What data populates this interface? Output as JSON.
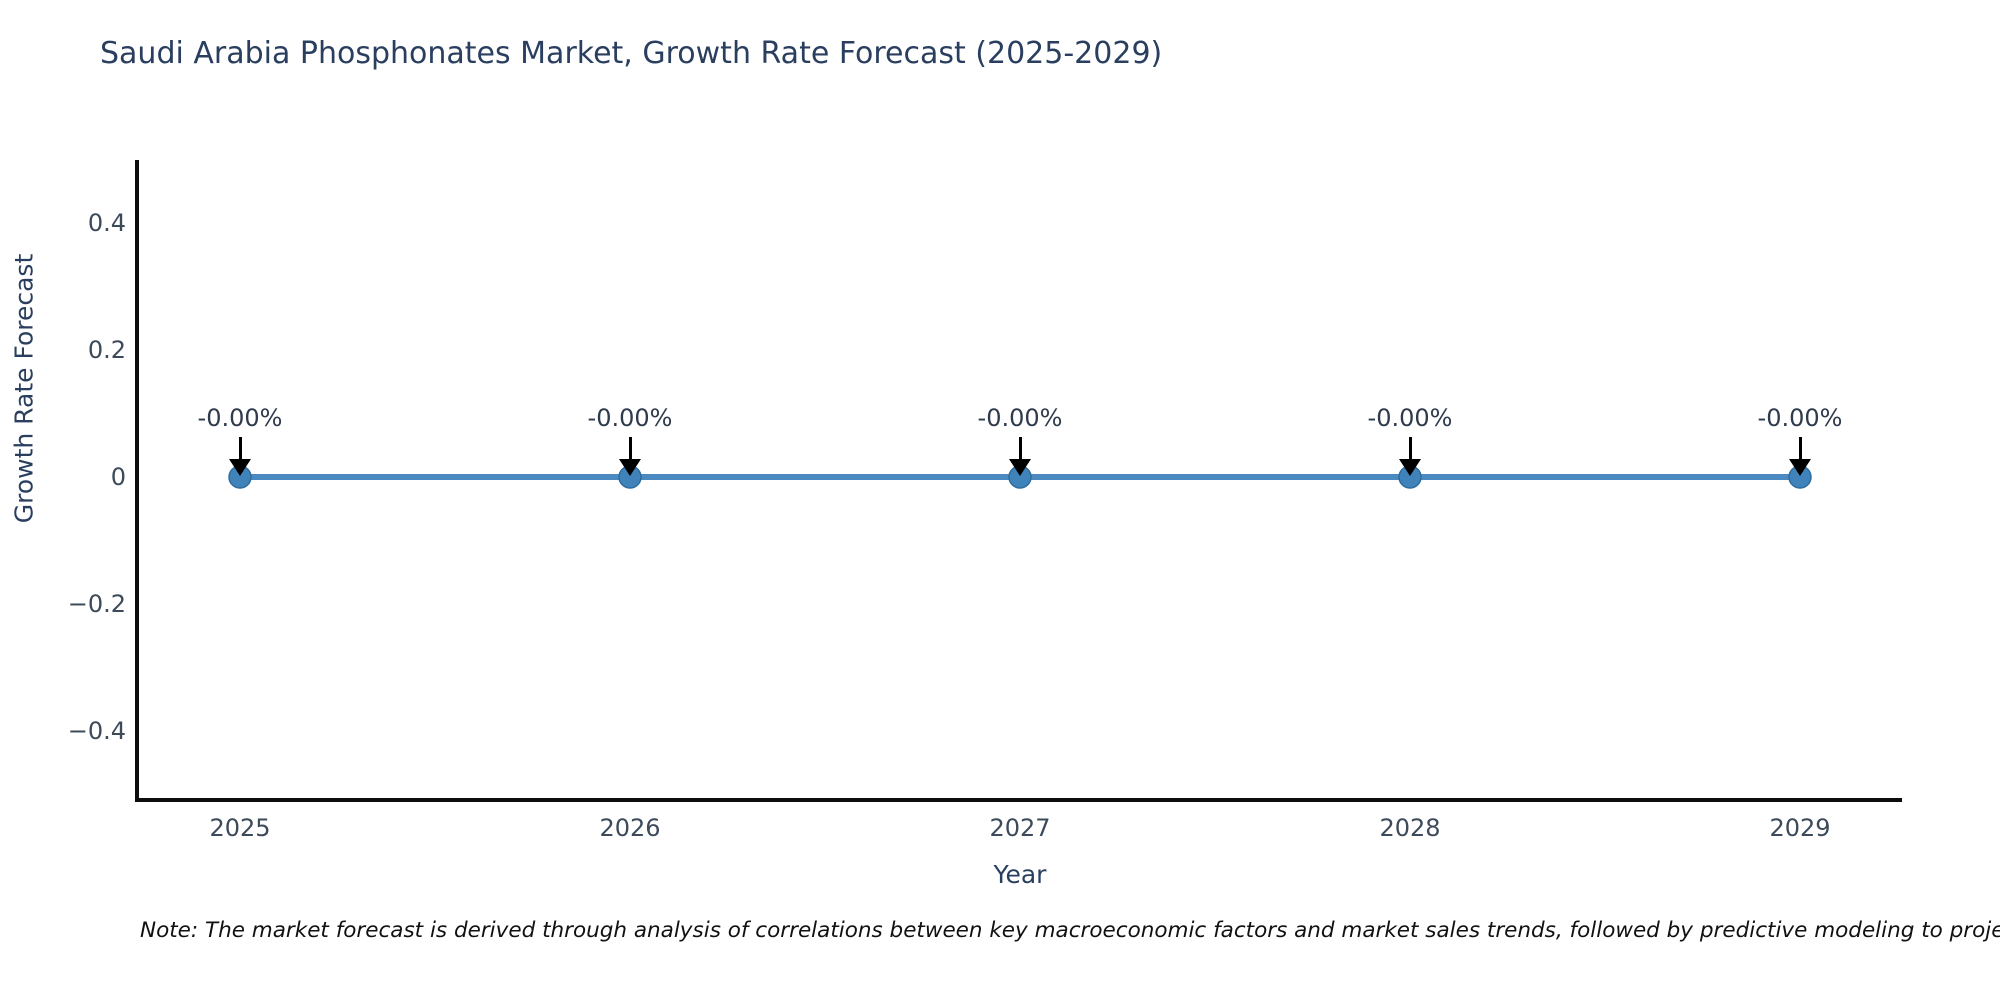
{
  "title": "Saudi Arabia Phosphonates Market, Growth Rate Forecast (2025-2029)",
  "note": "Note: The market forecast is derived through analysis of correlations between key macroeconomic factors and market sales trends, followed by predictive modeling to project future sales.",
  "colors": {
    "title": "#2a3f5f",
    "tick_label": "#3d4a5a",
    "axis_line": "#0d0d0d",
    "line": "#4a8ac0",
    "marker_fill": "#3f83ba",
    "marker_edge": "#2e6d9e",
    "annotation_text": "#2f3b4c",
    "annotation_arrow": "#000000",
    "background": "#ffffff"
  },
  "chart_data": {
    "type": "line",
    "title": "Saudi Arabia Phosphonates Market, Growth Rate Forecast (2025-2029)",
    "xlabel": "Year",
    "ylabel": "Growth Rate Forecast",
    "x": [
      2025,
      2026,
      2027,
      2028,
      2029
    ],
    "series": [
      {
        "name": "Growth Rate Forecast",
        "values": [
          0,
          0,
          0,
          0,
          0
        ]
      }
    ],
    "point_labels": [
      "-0.00%",
      "-0.00%",
      "-0.00%",
      "-0.00%",
      "-0.00%"
    ],
    "xtick_labels": [
      "2025",
      "2026",
      "2027",
      "2028",
      "2029"
    ],
    "yticks": [
      {
        "value": 0.4,
        "label": "0.4"
      },
      {
        "value": 0.2,
        "label": "0.2"
      },
      {
        "value": 0,
        "label": "0"
      },
      {
        "value": -0.2,
        "label": "−0.2"
      },
      {
        "value": -0.4,
        "label": "−0.4"
      }
    ],
    "ylim": [
      -0.5,
      0.5
    ],
    "grid": false,
    "legend": false,
    "annotations_have_arrows": true
  }
}
